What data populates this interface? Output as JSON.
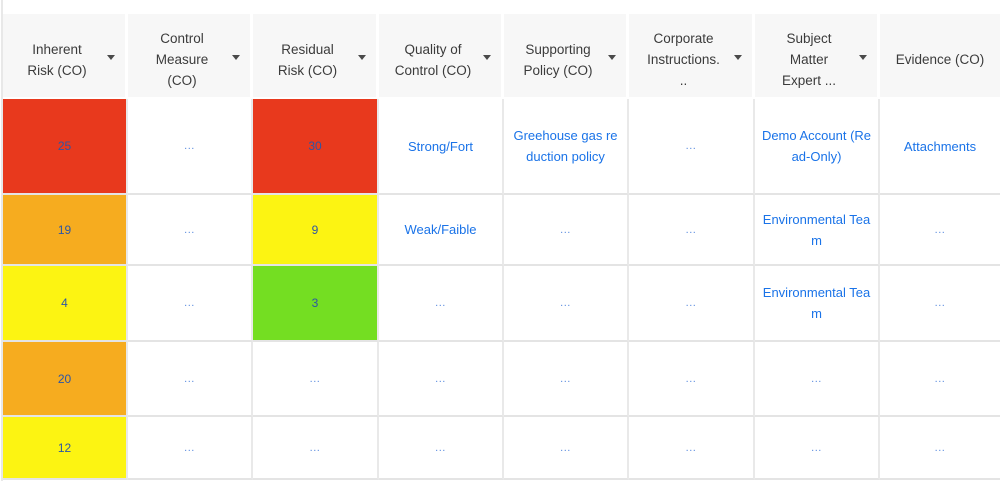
{
  "table": {
    "columns": [
      {
        "label": "Inherent\nRisk (CO)",
        "has_sort_arrow": true
      },
      {
        "label": "Control\nMeasure\n(CO)",
        "has_sort_arrow": true
      },
      {
        "label": "Residual\nRisk (CO)",
        "has_sort_arrow": true
      },
      {
        "label": "Quality of\nControl (CO)",
        "has_sort_arrow": true
      },
      {
        "label": "Supporting\nPolicy (CO)",
        "has_sort_arrow": true
      },
      {
        "label": "Corporate\nInstructions.\n..",
        "has_sort_arrow": true
      },
      {
        "label": "Subject\nMatter\nExpert ...",
        "has_sort_arrow": true
      },
      {
        "label": "Evidence (CO)",
        "has_sort_arrow": false
      }
    ],
    "rows": [
      {
        "cells": [
          {
            "text": "25",
            "bg": "risk_red"
          },
          {
            "text": "..."
          },
          {
            "text": "30",
            "bg": "risk_red"
          },
          {
            "text": "Strong/Fort"
          },
          {
            "text": "Greehouse gas reduction policy"
          },
          {
            "text": "..."
          },
          {
            "text": "Demo Account (Read-Only)"
          },
          {
            "text": "Attachments"
          }
        ]
      },
      {
        "cells": [
          {
            "text": "19",
            "bg": "risk_orange"
          },
          {
            "text": "..."
          },
          {
            "text": "9",
            "bg": "risk_yellow"
          },
          {
            "text": "Weak/Faible"
          },
          {
            "text": "..."
          },
          {
            "text": "..."
          },
          {
            "text": "Environmental Team"
          },
          {
            "text": "..."
          }
        ]
      },
      {
        "cells": [
          {
            "text": "4",
            "bg": "risk_yellow"
          },
          {
            "text": "..."
          },
          {
            "text": "3",
            "bg": "risk_green"
          },
          {
            "text": "..."
          },
          {
            "text": "..."
          },
          {
            "text": "..."
          },
          {
            "text": "Environmental Team"
          },
          {
            "text": "..."
          }
        ]
      },
      {
        "cells": [
          {
            "text": "20",
            "bg": "risk_orange"
          },
          {
            "text": "..."
          },
          {
            "text": "..."
          },
          {
            "text": "..."
          },
          {
            "text": "..."
          },
          {
            "text": "..."
          },
          {
            "text": "..."
          },
          {
            "text": "..."
          }
        ]
      },
      {
        "cells": [
          {
            "text": "12",
            "bg": "risk_yellow"
          },
          {
            "text": "..."
          },
          {
            "text": "..."
          },
          {
            "text": "..."
          },
          {
            "text": "..."
          },
          {
            "text": "..."
          },
          {
            "text": "..."
          },
          {
            "text": "..."
          }
        ]
      }
    ]
  },
  "colors": {
    "risk_red": "#e8391d",
    "risk_orange": "#f6ac1f",
    "risk_yellow": "#fcf412",
    "risk_green": "#74de22",
    "link_blue": "#1a73e8",
    "number_blue": "#2d56a5",
    "header_text": "#3b3b3b",
    "header_bg": "#f7f7f7",
    "grid_line": "#e4e4e4"
  }
}
